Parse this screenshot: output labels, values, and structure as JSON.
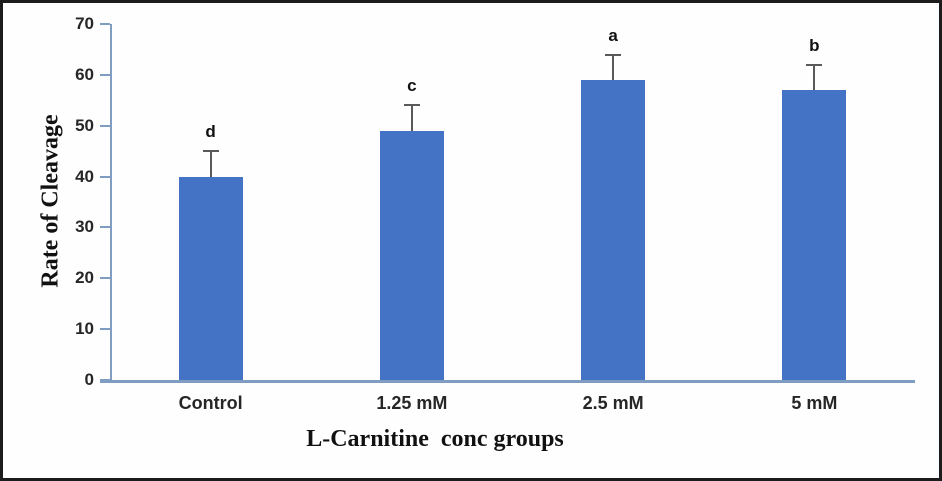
{
  "figure": {
    "background": "#fefefe",
    "border_color": "#1c1c1c"
  },
  "chart_data": {
    "type": "bar",
    "title": "",
    "categories": [
      "Control",
      "1.25 mM",
      "2.5 mM",
      "5 mM"
    ],
    "values": [
      40,
      49,
      59,
      57
    ],
    "error_plus": [
      5,
      5,
      5,
      5
    ],
    "significance_letters": [
      "d",
      "c",
      "a",
      "b"
    ],
    "xlabel": "L-Carnitine  conc groups",
    "ylabel": "Rate of Cleavage",
    "ylim": [
      0,
      70
    ],
    "yticks": [
      0,
      10,
      20,
      30,
      40,
      50,
      60,
      70
    ],
    "grid": false,
    "legend": false,
    "bar_color": "#4472C4",
    "axis_color": "#7E9DC0",
    "error_bar_color": "#595959",
    "tick_label_color": "#262626"
  }
}
